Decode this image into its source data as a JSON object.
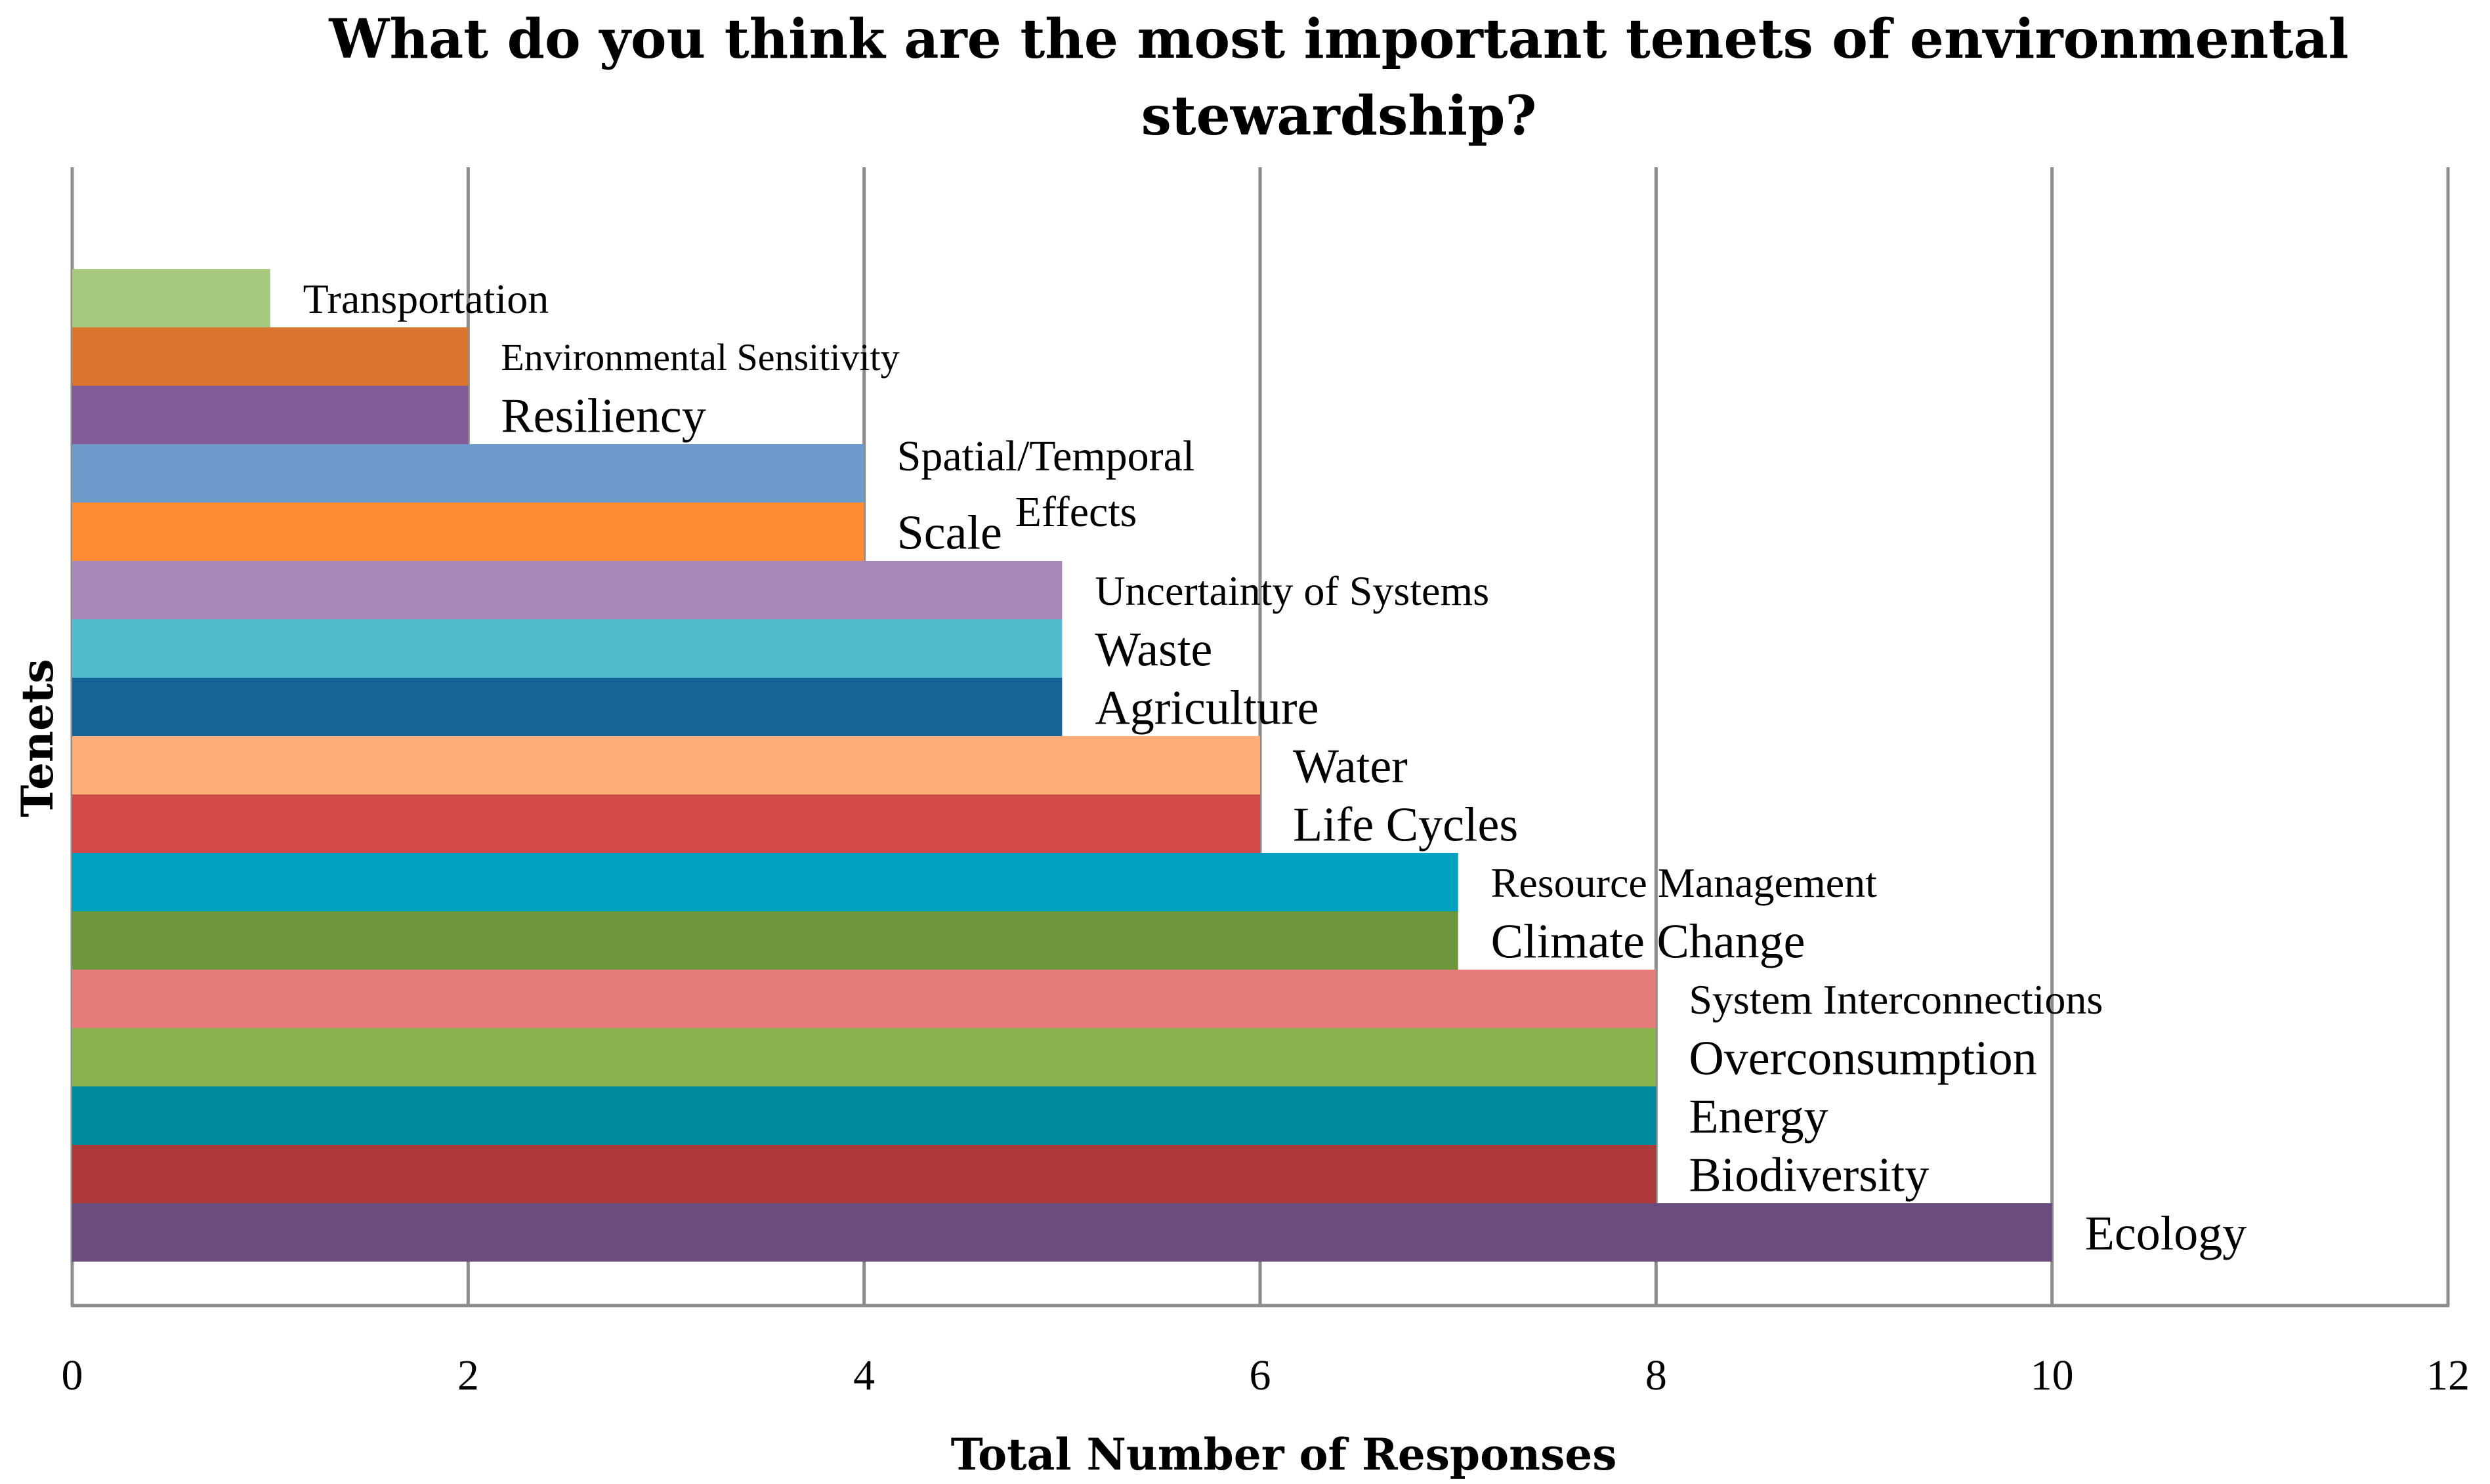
{
  "chart_data": {
    "type": "bar",
    "orientation": "horizontal",
    "title_lines": [
      "What do you think are the most important tenets of environmental",
      "stewardship?"
    ],
    "xlabel": "Total Number of Responses",
    "ylabel": "Tenets",
    "xlim": [
      0,
      12
    ],
    "xticks": [
      "0",
      "2",
      "4",
      "6",
      "8",
      "10",
      "12"
    ],
    "grid": true,
    "categories": [
      "Transportation",
      "Environmental Sensitivity",
      "Resiliency",
      "Spatial/Temporal Effects",
      "Scale",
      "Uncertainty of Systems",
      "Waste",
      "Agriculture",
      "Water",
      "Life Cycles",
      "Resource Management",
      "Climate Change",
      "System Interconnections",
      "Overconsumption",
      "Energy",
      "Biodiversity",
      "Ecology"
    ],
    "label_lines": [
      [
        "Transportation"
      ],
      [
        "Environmental Sensitivity"
      ],
      [
        "Resiliency"
      ],
      [
        "Spatial/Temporal",
        "Effects"
      ],
      [
        "Scale"
      ],
      [
        "Uncertainty of Systems"
      ],
      [
        "Waste"
      ],
      [
        "Agriculture"
      ],
      [
        "Water"
      ],
      [
        "Life Cycles"
      ],
      [
        "Resource Management"
      ],
      [
        "Climate Change"
      ],
      [
        "System Interconnections"
      ],
      [
        "Overconsumption"
      ],
      [
        "Energy"
      ],
      [
        "Biodiversity"
      ],
      [
        "Ecology"
      ]
    ],
    "values": [
      1,
      2,
      2,
      4,
      4,
      5,
      5,
      5,
      6,
      6,
      7,
      7,
      8,
      8,
      8,
      8,
      10
    ],
    "colors": [
      "#a6c97f",
      "#d9752e",
      "#815c98",
      "#6d9bcb",
      "#fe8c35",
      "#a588b8",
      "#52bccf",
      "#166497",
      "#feac78",
      "#d04a48",
      "#00a2c0",
      "#6c963c",
      "#e37c7b",
      "#89b34e",
      "#008aa0",
      "#ad393a",
      "#6a4c7e"
    ]
  }
}
